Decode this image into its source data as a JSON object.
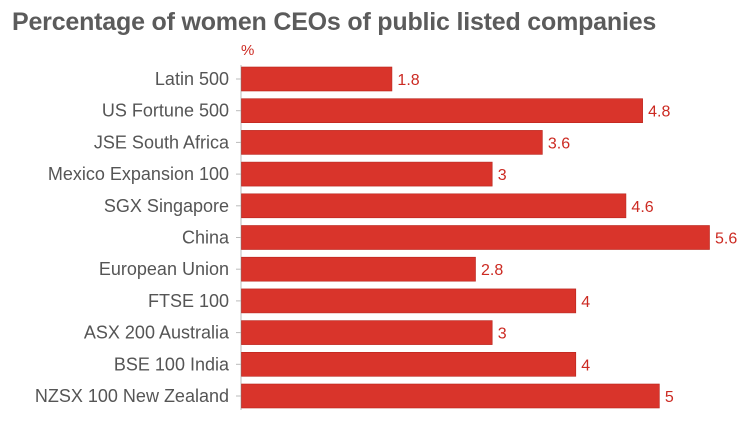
{
  "chart_data": {
    "type": "bar",
    "orientation": "horizontal",
    "title": "Percentage of women CEOs of public listed companies",
    "unit_label": "%",
    "categories": [
      "Latin 500",
      "US Fortune 500",
      "JSE South Africa",
      "Mexico Expansion 100",
      "SGX Singapore",
      "China",
      "European Union",
      "FTSE 100",
      "ASX 200 Australia",
      "BSE 100 India",
      "NZSX 100 New Zealand"
    ],
    "values": [
      1.8,
      4.8,
      3.6,
      3,
      4.6,
      5.6,
      2.8,
      4,
      3,
      4,
      5
    ],
    "value_labels": [
      "1.8",
      "4.8",
      "3.6",
      "3",
      "4.6",
      "5.6",
      "2.8",
      "4",
      "3",
      "4",
      "5"
    ],
    "xlim": [
      0,
      5.6
    ],
    "grid": false,
    "colors": {
      "bar": "#d9342b",
      "bar_edge": "#b8251d",
      "value_text": "#cc2a22",
      "category_text": "#555555",
      "axis": "#bbbbbb",
      "title_text": "#5b5b5b"
    }
  }
}
